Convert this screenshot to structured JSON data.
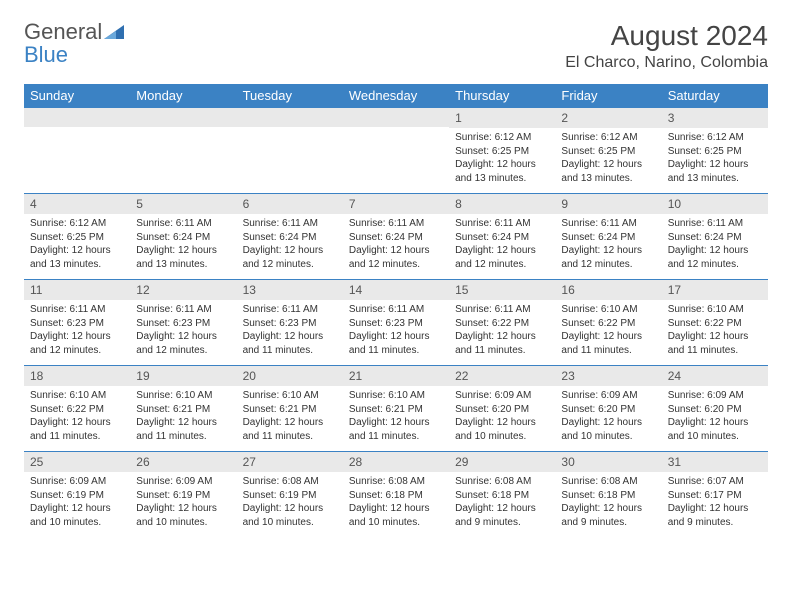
{
  "logo": {
    "line1": "General",
    "line2": "Blue"
  },
  "title": "August 2024",
  "location": "El Charco, Narino, Colombia",
  "colors": {
    "header_bg": "#3b82c4",
    "header_fg": "#ffffff",
    "daynum_bg": "#e9e9e9",
    "daynum_fg": "#555555",
    "row_divider": "#3b82c4",
    "text": "#333333",
    "page_bg": "#ffffff"
  },
  "typography": {
    "body_fontsize": 10,
    "daynum_fontsize": 12,
    "header_fontsize": 13,
    "title_fontsize": 28,
    "location_fontsize": 16
  },
  "day_headers": [
    "Sunday",
    "Monday",
    "Tuesday",
    "Wednesday",
    "Thursday",
    "Friday",
    "Saturday"
  ],
  "weeks": [
    [
      null,
      null,
      null,
      null,
      {
        "n": "1",
        "sr": "Sunrise: 6:12 AM",
        "ss": "Sunset: 6:25 PM",
        "d1": "Daylight: 12 hours",
        "d2": "and 13 minutes."
      },
      {
        "n": "2",
        "sr": "Sunrise: 6:12 AM",
        "ss": "Sunset: 6:25 PM",
        "d1": "Daylight: 12 hours",
        "d2": "and 13 minutes."
      },
      {
        "n": "3",
        "sr": "Sunrise: 6:12 AM",
        "ss": "Sunset: 6:25 PM",
        "d1": "Daylight: 12 hours",
        "d2": "and 13 minutes."
      }
    ],
    [
      {
        "n": "4",
        "sr": "Sunrise: 6:12 AM",
        "ss": "Sunset: 6:25 PM",
        "d1": "Daylight: 12 hours",
        "d2": "and 13 minutes."
      },
      {
        "n": "5",
        "sr": "Sunrise: 6:11 AM",
        "ss": "Sunset: 6:24 PM",
        "d1": "Daylight: 12 hours",
        "d2": "and 13 minutes."
      },
      {
        "n": "6",
        "sr": "Sunrise: 6:11 AM",
        "ss": "Sunset: 6:24 PM",
        "d1": "Daylight: 12 hours",
        "d2": "and 12 minutes."
      },
      {
        "n": "7",
        "sr": "Sunrise: 6:11 AM",
        "ss": "Sunset: 6:24 PM",
        "d1": "Daylight: 12 hours",
        "d2": "and 12 minutes."
      },
      {
        "n": "8",
        "sr": "Sunrise: 6:11 AM",
        "ss": "Sunset: 6:24 PM",
        "d1": "Daylight: 12 hours",
        "d2": "and 12 minutes."
      },
      {
        "n": "9",
        "sr": "Sunrise: 6:11 AM",
        "ss": "Sunset: 6:24 PM",
        "d1": "Daylight: 12 hours",
        "d2": "and 12 minutes."
      },
      {
        "n": "10",
        "sr": "Sunrise: 6:11 AM",
        "ss": "Sunset: 6:24 PM",
        "d1": "Daylight: 12 hours",
        "d2": "and 12 minutes."
      }
    ],
    [
      {
        "n": "11",
        "sr": "Sunrise: 6:11 AM",
        "ss": "Sunset: 6:23 PM",
        "d1": "Daylight: 12 hours",
        "d2": "and 12 minutes."
      },
      {
        "n": "12",
        "sr": "Sunrise: 6:11 AM",
        "ss": "Sunset: 6:23 PM",
        "d1": "Daylight: 12 hours",
        "d2": "and 12 minutes."
      },
      {
        "n": "13",
        "sr": "Sunrise: 6:11 AM",
        "ss": "Sunset: 6:23 PM",
        "d1": "Daylight: 12 hours",
        "d2": "and 11 minutes."
      },
      {
        "n": "14",
        "sr": "Sunrise: 6:11 AM",
        "ss": "Sunset: 6:23 PM",
        "d1": "Daylight: 12 hours",
        "d2": "and 11 minutes."
      },
      {
        "n": "15",
        "sr": "Sunrise: 6:11 AM",
        "ss": "Sunset: 6:22 PM",
        "d1": "Daylight: 12 hours",
        "d2": "and 11 minutes."
      },
      {
        "n": "16",
        "sr": "Sunrise: 6:10 AM",
        "ss": "Sunset: 6:22 PM",
        "d1": "Daylight: 12 hours",
        "d2": "and 11 minutes."
      },
      {
        "n": "17",
        "sr": "Sunrise: 6:10 AM",
        "ss": "Sunset: 6:22 PM",
        "d1": "Daylight: 12 hours",
        "d2": "and 11 minutes."
      }
    ],
    [
      {
        "n": "18",
        "sr": "Sunrise: 6:10 AM",
        "ss": "Sunset: 6:22 PM",
        "d1": "Daylight: 12 hours",
        "d2": "and 11 minutes."
      },
      {
        "n": "19",
        "sr": "Sunrise: 6:10 AM",
        "ss": "Sunset: 6:21 PM",
        "d1": "Daylight: 12 hours",
        "d2": "and 11 minutes."
      },
      {
        "n": "20",
        "sr": "Sunrise: 6:10 AM",
        "ss": "Sunset: 6:21 PM",
        "d1": "Daylight: 12 hours",
        "d2": "and 11 minutes."
      },
      {
        "n": "21",
        "sr": "Sunrise: 6:10 AM",
        "ss": "Sunset: 6:21 PM",
        "d1": "Daylight: 12 hours",
        "d2": "and 11 minutes."
      },
      {
        "n": "22",
        "sr": "Sunrise: 6:09 AM",
        "ss": "Sunset: 6:20 PM",
        "d1": "Daylight: 12 hours",
        "d2": "and 10 minutes."
      },
      {
        "n": "23",
        "sr": "Sunrise: 6:09 AM",
        "ss": "Sunset: 6:20 PM",
        "d1": "Daylight: 12 hours",
        "d2": "and 10 minutes."
      },
      {
        "n": "24",
        "sr": "Sunrise: 6:09 AM",
        "ss": "Sunset: 6:20 PM",
        "d1": "Daylight: 12 hours",
        "d2": "and 10 minutes."
      }
    ],
    [
      {
        "n": "25",
        "sr": "Sunrise: 6:09 AM",
        "ss": "Sunset: 6:19 PM",
        "d1": "Daylight: 12 hours",
        "d2": "and 10 minutes."
      },
      {
        "n": "26",
        "sr": "Sunrise: 6:09 AM",
        "ss": "Sunset: 6:19 PM",
        "d1": "Daylight: 12 hours",
        "d2": "and 10 minutes."
      },
      {
        "n": "27",
        "sr": "Sunrise: 6:08 AM",
        "ss": "Sunset: 6:19 PM",
        "d1": "Daylight: 12 hours",
        "d2": "and 10 minutes."
      },
      {
        "n": "28",
        "sr": "Sunrise: 6:08 AM",
        "ss": "Sunset: 6:18 PM",
        "d1": "Daylight: 12 hours",
        "d2": "and 10 minutes."
      },
      {
        "n": "29",
        "sr": "Sunrise: 6:08 AM",
        "ss": "Sunset: 6:18 PM",
        "d1": "Daylight: 12 hours",
        "d2": "and 9 minutes."
      },
      {
        "n": "30",
        "sr": "Sunrise: 6:08 AM",
        "ss": "Sunset: 6:18 PM",
        "d1": "Daylight: 12 hours",
        "d2": "and 9 minutes."
      },
      {
        "n": "31",
        "sr": "Sunrise: 6:07 AM",
        "ss": "Sunset: 6:17 PM",
        "d1": "Daylight: 12 hours",
        "d2": "and 9 minutes."
      }
    ]
  ]
}
